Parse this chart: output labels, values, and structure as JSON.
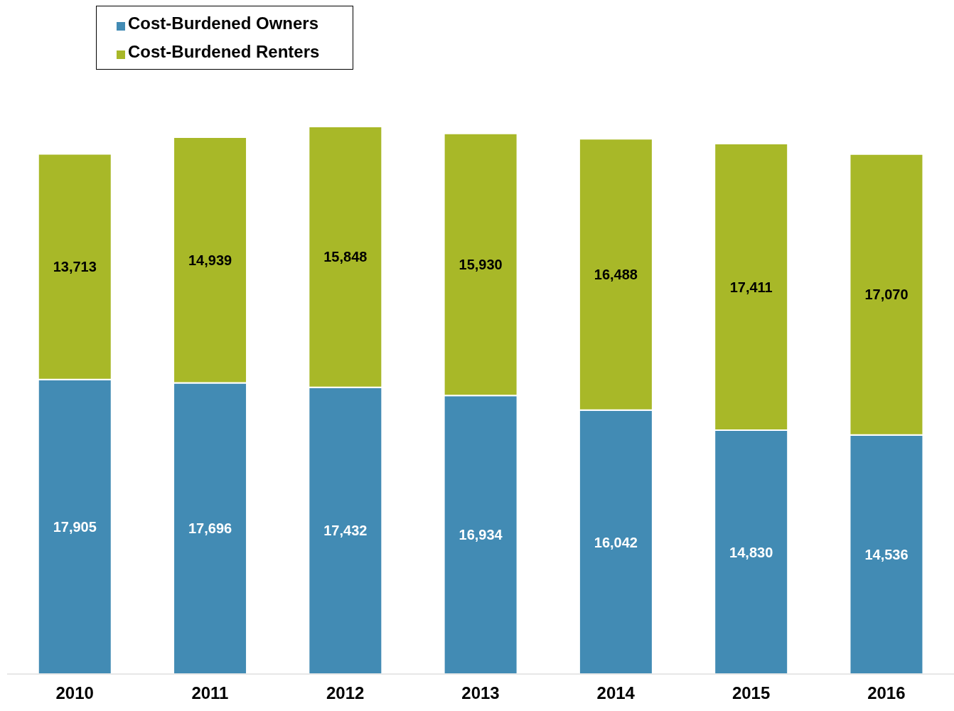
{
  "chart_data": {
    "type": "bar",
    "stacked": true,
    "categories": [
      "2010",
      "2011",
      "2012",
      "2013",
      "2014",
      "2015",
      "2016"
    ],
    "series": [
      {
        "name": "Cost-Burdened Owners",
        "color": "#428bb4",
        "values": [
          17905,
          17696,
          17432,
          16934,
          16042,
          14830,
          14536
        ],
        "value_labels": [
          "17,905",
          "17,696",
          "17,432",
          "16,934",
          "16,042",
          "14,830",
          "14,536"
        ]
      },
      {
        "name": "Cost-Burdened Renters",
        "color": "#a8b828",
        "values": [
          13713,
          14939,
          15848,
          15930,
          16488,
          17411,
          17070
        ],
        "value_labels": [
          "13,713",
          "14,939",
          "15,848",
          "15,930",
          "16,488",
          "17,411",
          "17,070"
        ]
      }
    ],
    "legend": "top left",
    "grid": false
  }
}
